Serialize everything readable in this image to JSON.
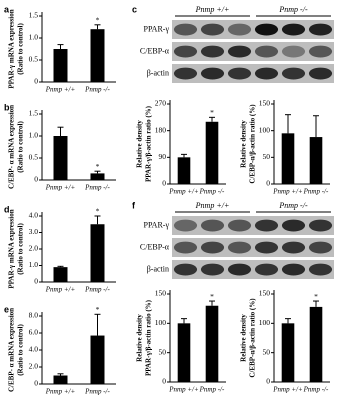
{
  "chart_data": [
    {
      "type": "bar",
      "panel": "a",
      "ylabel": [
        "PPAR-γ mRNA expression",
        "(Ratio to control)"
      ],
      "categories": [
        "Pnmp +/+",
        "Pnmp -/-"
      ],
      "values": [
        0.75,
        1.2
      ],
      "errors": [
        0.1,
        0.1
      ],
      "color": "#000000",
      "ylim": [
        0,
        1.5
      ],
      "yticks": [
        0,
        0.5,
        {
          "value": 1,
          "label": "1.0"
        },
        1.5
      ],
      "annotations": [
        {
          "text": "*",
          "x": "Pnmp -/-"
        }
      ]
    },
    {
      "type": "bar",
      "panel": "b",
      "ylabel": [
        "C/EBP- α mRNA expression",
        "(Ratio to control)"
      ],
      "categories": [
        "Pnmp +/+",
        "Pnmp -/-"
      ],
      "values": [
        1.0,
        0.15
      ],
      "errors": [
        0.2,
        0.05
      ],
      "color": "#000000",
      "ylim": [
        0,
        1.5
      ],
      "yticks": [
        0,
        0.5,
        {
          "value": 1,
          "label": "1.0"
        },
        1.5
      ],
      "annotations": [
        {
          "text": "*",
          "x": "Pnmp -/-"
        }
      ]
    },
    {
      "type": "bar",
      "panel": "d",
      "ylabel": [
        "PPAR-γ mRNA expression",
        "(Ratio to control)"
      ],
      "categories": [
        "Pnmp +/+",
        "Pnmp -/-"
      ],
      "values": [
        0.9,
        3.5
      ],
      "errors": [
        0.05,
        0.5
      ],
      "color": "#000000",
      "ylim": [
        0,
        4
      ],
      "yticks": [
        0,
        {
          "value": 1,
          "label": "1.0"
        },
        {
          "value": 2,
          "label": "2.0"
        },
        {
          "value": 3,
          "label": "3.0"
        },
        {
          "value": 4,
          "label": "4.0"
        }
      ],
      "annotations": [
        {
          "text": "*",
          "x": "Pnmp -/-"
        }
      ]
    },
    {
      "type": "bar",
      "panel": "e",
      "ylabel": [
        "C/EBP- α mRNA expression",
        "(Ratio to control)"
      ],
      "categories": [
        "Pnmp +/+",
        "Pnmp -/-"
      ],
      "values": [
        1.0,
        5.7
      ],
      "errors": [
        0.2,
        2.5
      ],
      "color": "#000000",
      "ylim": [
        0,
        8
      ],
      "yticks": [
        0,
        {
          "value": 2,
          "label": "2.0"
        },
        {
          "value": 4,
          "label": "4.0"
        },
        {
          "value": 6,
          "label": "6.0"
        },
        {
          "value": 8,
          "label": "8.0"
        }
      ],
      "annotations": [
        {
          "text": "*",
          "x": "Pnmp -/-"
        }
      ]
    },
    {
      "type": "bar",
      "ylabel": [
        "Relative density",
        "PPAR-γ/β-actin ratio (%)"
      ],
      "categories": [
        "Pnmp +/+",
        "Pnmp -/-"
      ],
      "values": [
        90,
        210
      ],
      "errors": [
        10,
        15
      ],
      "color": "#000000",
      "ylim": [
        0,
        270
      ],
      "yticks": [
        0,
        90,
        180,
        270
      ],
      "annotations": [
        {
          "text": "*",
          "x": "Pnmp -/-"
        }
      ]
    },
    {
      "type": "bar",
      "ylabel": [
        "Relative density",
        "C/EBP-α/β-actin ratio (%)"
      ],
      "categories": [
        "Pnmp +/+",
        "Pnmp -/-"
      ],
      "values": [
        95,
        88
      ],
      "errors": [
        35,
        40
      ],
      "color": "#000000",
      "ylim": [
        0,
        150
      ],
      "yticks": [
        0,
        50,
        100,
        150
      ]
    },
    {
      "type": "bar",
      "ylabel": [
        "Relative density",
        "PPAR-γ/β-actin ratio (%)"
      ],
      "categories": [
        "Pnmp +/+",
        "Pnmp -/-"
      ],
      "values": [
        100,
        130
      ],
      "errors": [
        8,
        8
      ],
      "color": "#000000",
      "ylim": [
        0,
        150
      ],
      "yticks": [
        0,
        50,
        100,
        150
      ],
      "annotations": [
        {
          "text": "*",
          "x": "Pnmp -/-"
        }
      ]
    },
    {
      "type": "bar",
      "ylabel": [
        "Relative density",
        "C/EBP-α/β-actin ratio (%)"
      ],
      "categories": [
        "Pnmp +/+",
        "Pnmp -/-"
      ],
      "values": [
        100,
        128
      ],
      "errors": [
        8,
        10
      ],
      "color": "#000000",
      "ylim": [
        0,
        150
      ],
      "yticks": [
        0,
        50,
        100,
        150
      ],
      "annotations": [
        {
          "text": "*",
          "x": "Pnmp -/-"
        }
      ]
    }
  ],
  "blots": [
    {
      "panel": "c",
      "groups": [
        "Pnmp +/+",
        "Pnmp -/-"
      ],
      "rows": [
        "PPAR-γ",
        "C/EBP-α",
        "β-actin"
      ]
    },
    {
      "panel": "f",
      "groups": [
        "Pnmp +/+",
        "Pnmp -/-"
      ],
      "rows": [
        "PPAR-γ",
        "C/EBP-α",
        "β-actin"
      ]
    }
  ]
}
